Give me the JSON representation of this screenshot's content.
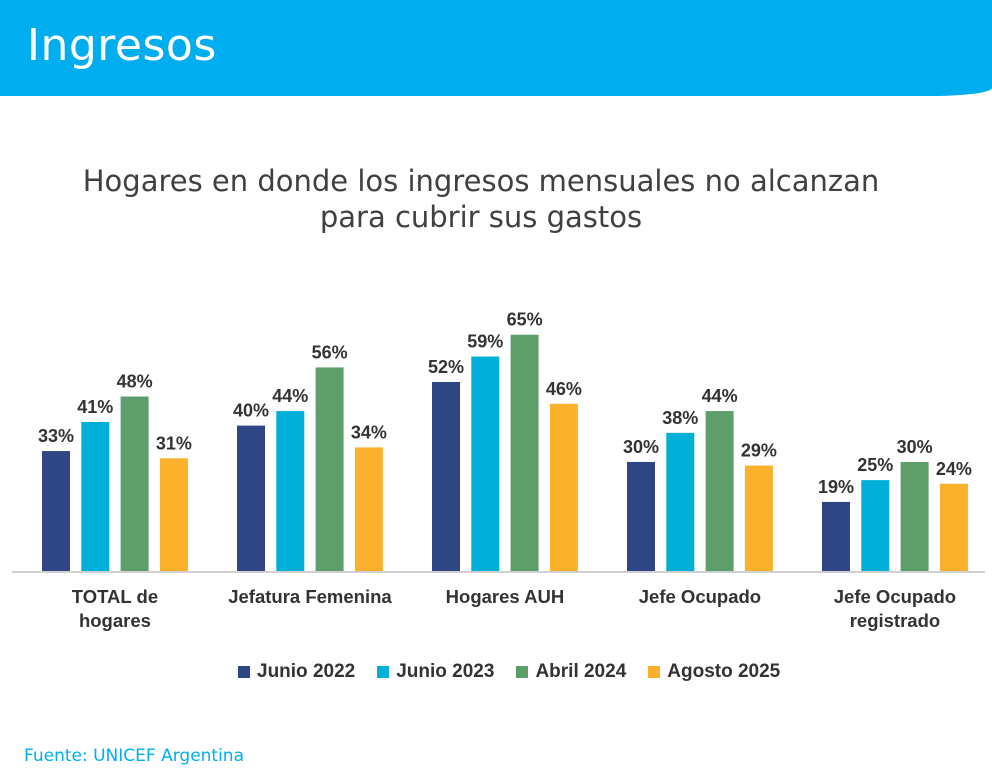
{
  "header": {
    "title": "Ingresos"
  },
  "source": "Fuente: UNICEF Argentina",
  "chart_data": {
    "type": "bar",
    "title_lines": [
      "Hogares en donde los ingresos mensuales no alcanzan",
      "para cubrir sus gastos"
    ],
    "categories": [
      [
        "TOTAL de",
        "hogares"
      ],
      [
        "Jefatura Femenina"
      ],
      [
        "Hogares AUH"
      ],
      [
        "Jefe Ocupado"
      ],
      [
        "Jefe Ocupado",
        "registrado"
      ]
    ],
    "series": [
      {
        "name": "Junio 2022",
        "color": "#2F4685",
        "values": [
          33,
          40,
          52,
          30,
          19
        ]
      },
      {
        "name": "Junio 2023",
        "color": "#00B0D8",
        "values": [
          41,
          44,
          59,
          38,
          25
        ]
      },
      {
        "name": "Abril 2024",
        "color": "#5E9E6B",
        "values": [
          48,
          56,
          65,
          44,
          30
        ]
      },
      {
        "name": "Agosto 2025",
        "color": "#FBB12B",
        "values": [
          31,
          34,
          46,
          29,
          24
        ]
      }
    ],
    "value_suffix": "%",
    "ylim": [
      0,
      100
    ],
    "grid": false,
    "legend_position": "bottom"
  }
}
